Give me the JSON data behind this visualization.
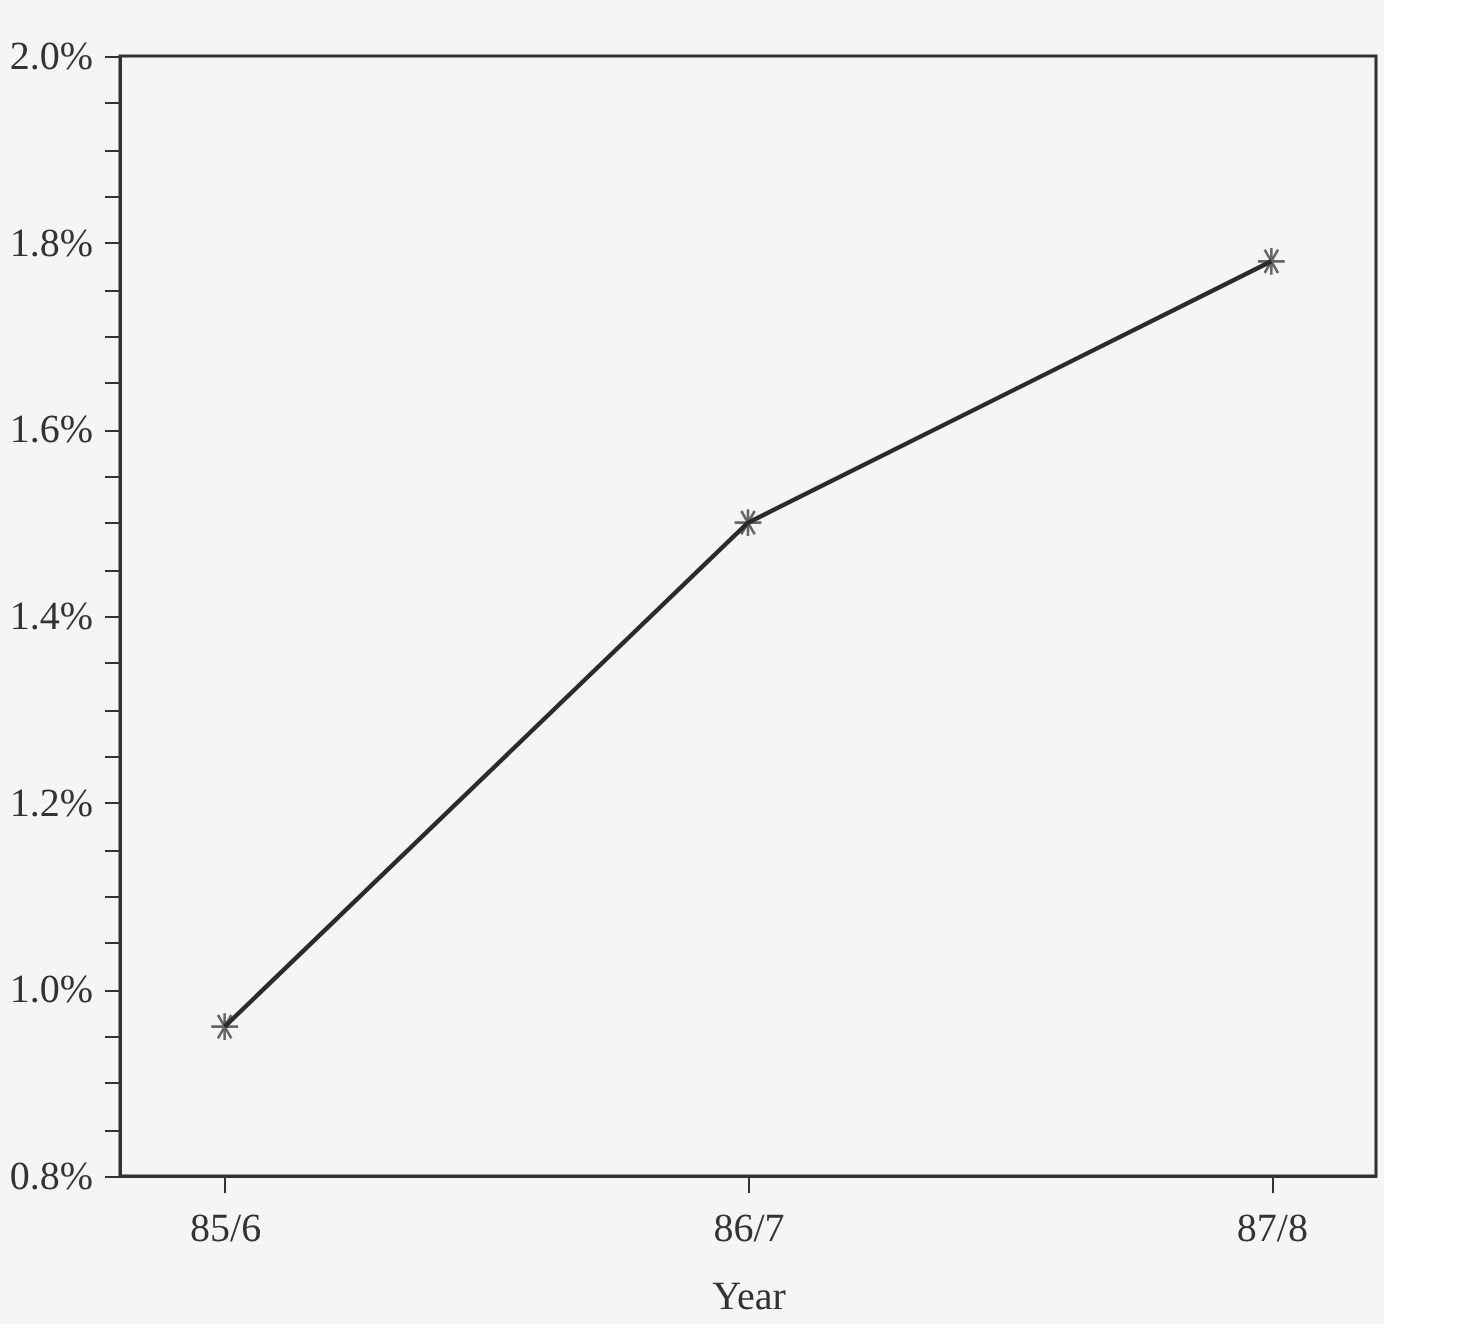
{
  "chart_data": {
    "type": "line",
    "xlabel": "Year",
    "categories": [
      "85/6",
      "86/7",
      "87/8"
    ],
    "series": [
      {
        "color": "#2b2b2b",
        "values": [
          0.96,
          1.5,
          1.78
        ]
      }
    ],
    "ylim": [
      0.8,
      2.0
    ],
    "yticks": [
      {
        "value": 0.8,
        "label": "0.8%"
      },
      {
        "value": 0.85,
        "label": null
      },
      {
        "value": 0.9,
        "label": null
      },
      {
        "value": 0.95,
        "label": null
      },
      {
        "value": 1.0,
        "label": "1.0%"
      },
      {
        "value": 1.05,
        "label": null
      },
      {
        "value": 1.1,
        "label": null
      },
      {
        "value": 1.15,
        "label": null
      },
      {
        "value": 1.2,
        "label": "1.2%"
      },
      {
        "value": 1.25,
        "label": null
      },
      {
        "value": 1.3,
        "label": null
      },
      {
        "value": 1.35,
        "label": null
      },
      {
        "value": 1.4,
        "label": "1.4%"
      },
      {
        "value": 1.45,
        "label": null
      },
      {
        "value": 1.5,
        "label": null
      },
      {
        "value": 1.55,
        "label": null
      },
      {
        "value": 1.6,
        "label": "1.6%"
      },
      {
        "value": 1.65,
        "label": null
      },
      {
        "value": 1.7,
        "label": null
      },
      {
        "value": 1.75,
        "label": null
      },
      {
        "value": 1.8,
        "label": "1.8%"
      },
      {
        "value": 1.85,
        "label": null
      },
      {
        "value": 1.9,
        "label": null
      },
      {
        "value": 1.95,
        "label": null
      },
      {
        "value": 2.0,
        "label": "2.0%"
      }
    ],
    "marker": "cross",
    "line_style": "solid",
    "grid": false
  }
}
